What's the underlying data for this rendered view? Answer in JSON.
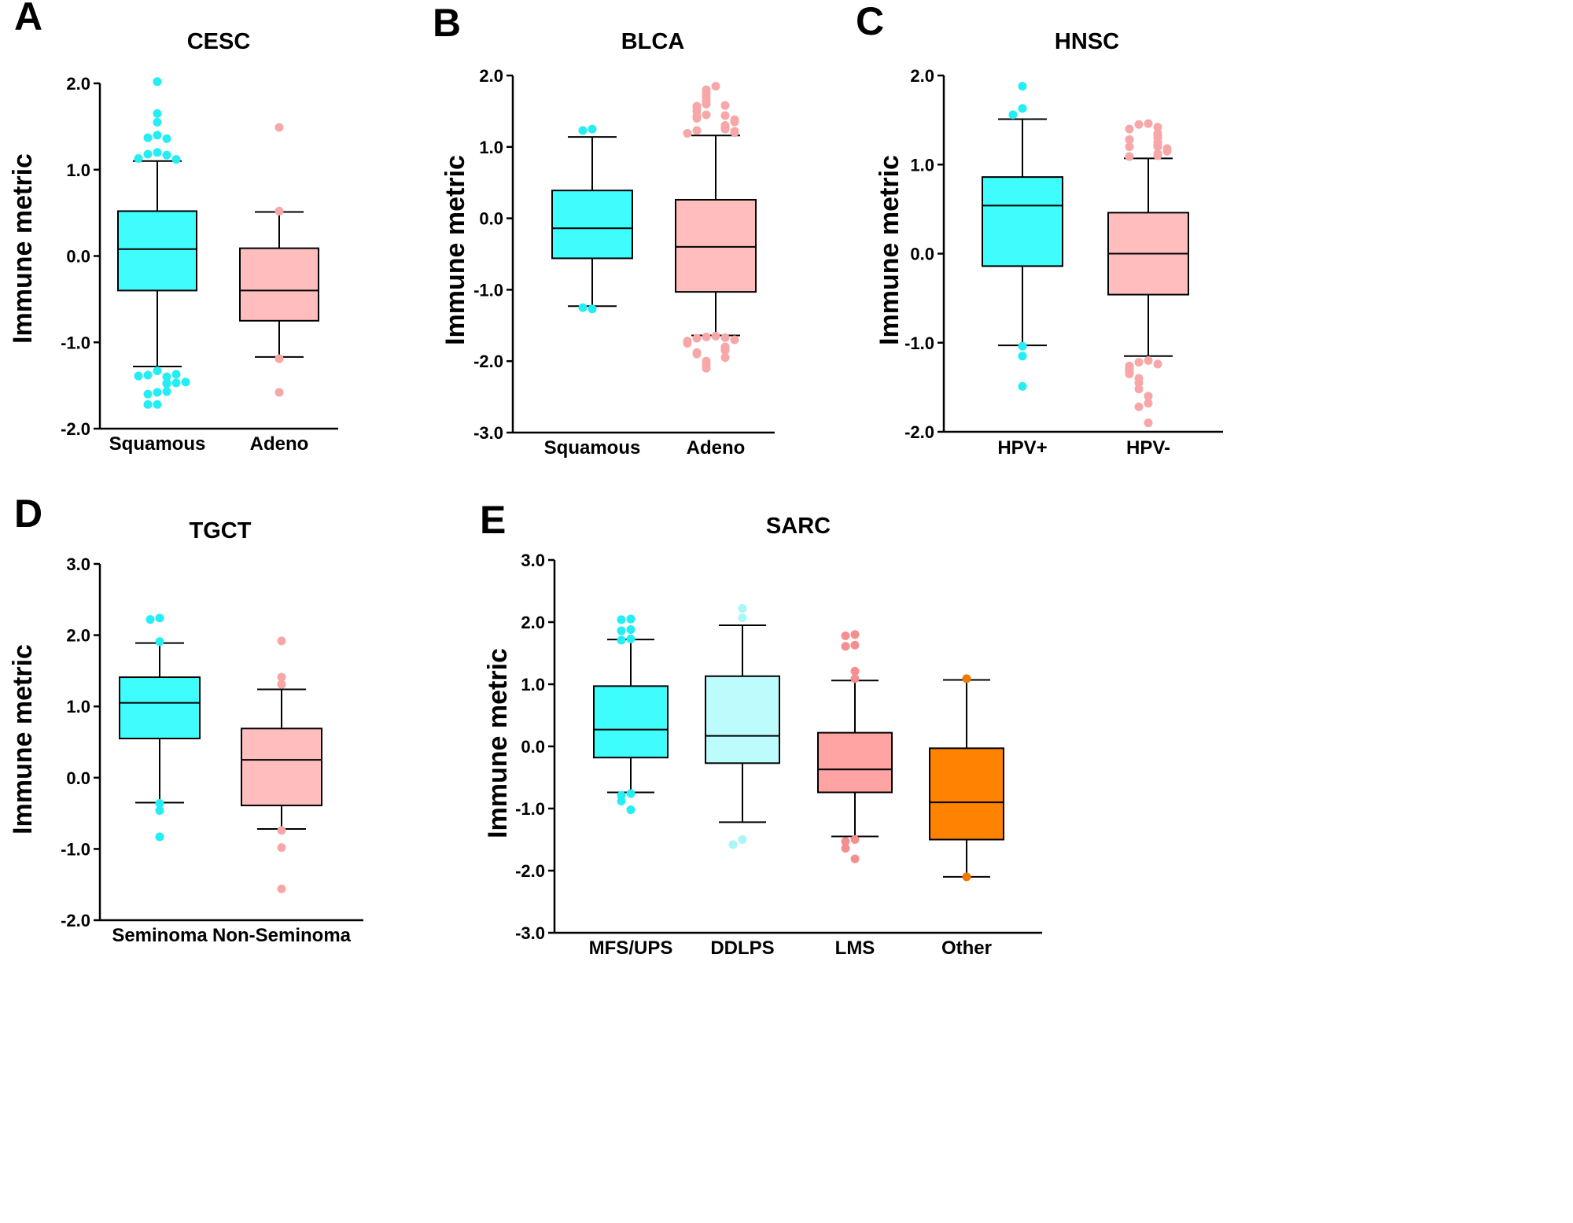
{
  "chart_data": [
    {
      "panel": "A",
      "type": "box",
      "title": "CESC",
      "ylabel": "Immune metric",
      "ylim": [
        -2.0,
        2.0
      ],
      "yticks": [
        "2.0",
        "1.0",
        "0.0",
        "-1.0",
        "-2.0"
      ],
      "categories": [
        "Squamous",
        "Adeno"
      ],
      "colors": [
        "#3ffdfd",
        "#ffbdbd"
      ],
      "outlier_colors": [
        "#22eef4",
        "#f7a7a7"
      ],
      "boxes": [
        {
          "q1": -0.4,
          "median": 0.08,
          "q3": 0.52,
          "whisker_low": -1.28,
          "whisker_high": 1.1,
          "outliers": [
            2.02,
            1.65,
            1.55,
            1.4,
            1.37,
            1.36,
            1.2,
            1.18,
            1.17,
            1.13,
            1.12,
            -1.33,
            -1.38,
            -1.4,
            -1.39,
            -1.37,
            -1.47,
            -1.48,
            -1.47,
            -1.46,
            -1.58,
            -1.6,
            -1.57,
            -1.72,
            -1.72
          ]
        },
        {
          "q1": -0.75,
          "median": -0.4,
          "q3": 0.09,
          "whisker_low": -1.17,
          "whisker_high": 0.51,
          "outliers": [
            1.49,
            0.52,
            -1.19,
            -1.58
          ]
        }
      ]
    },
    {
      "panel": "B",
      "type": "box",
      "title": "BLCA",
      "ylabel": "Immune metric",
      "ylim": [
        -3.0,
        2.0
      ],
      "yticks": [
        "2.0",
        "1.0",
        "0.0",
        "-1.0",
        "-2.0",
        "-3.0"
      ],
      "categories": [
        "Squamous",
        "Adeno"
      ],
      "colors": [
        "#3ffdfd",
        "#ffbdbd"
      ],
      "outlier_colors": [
        "#22eef4",
        "#f7a7a7"
      ],
      "boxes": [
        {
          "q1": -0.56,
          "median": -0.14,
          "q3": 0.39,
          "whisker_low": -1.23,
          "whisker_high": 1.14,
          "outliers": [
            1.25,
            1.23,
            -1.27,
            -1.25
          ]
        },
        {
          "q1": -1.03,
          "median": -0.4,
          "q3": 0.26,
          "whisker_low": -1.64,
          "whisker_high": 1.16,
          "outliers": [
            1.85,
            1.8,
            1.75,
            1.7,
            1.65,
            1.6,
            1.58,
            1.57,
            1.55,
            1.5,
            1.45,
            1.44,
            1.43,
            1.4,
            1.38,
            1.35,
            1.3,
            1.28,
            1.25,
            1.23,
            1.22,
            1.2,
            1.19,
            -1.65,
            -1.66,
            -1.67,
            -1.68,
            -1.7,
            -1.72,
            -1.75,
            -1.8,
            -1.82,
            -1.85,
            -1.88,
            -1.9,
            -1.95,
            -2.0,
            -2.05,
            -2.1
          ]
        }
      ]
    },
    {
      "panel": "C",
      "type": "box",
      "title": "HNSC",
      "ylabel": "Immune metric",
      "ylim": [
        -2.0,
        2.0
      ],
      "yticks": [
        "2.0",
        "1.0",
        "0.0",
        "-1.0",
        "-2.0"
      ],
      "categories": [
        "HPV+",
        "HPV-"
      ],
      "colors": [
        "#3ffdfd",
        "#ffbdbd"
      ],
      "outlier_colors": [
        "#22eef4",
        "#f7a7a7"
      ],
      "boxes": [
        {
          "q1": -0.14,
          "median": 0.54,
          "q3": 0.86,
          "whisker_low": -1.03,
          "whisker_high": 1.51,
          "outliers": [
            1.88,
            1.63,
            1.56,
            -1.04,
            -1.15,
            -1.49
          ]
        },
        {
          "q1": -0.46,
          "median": 0.0,
          "q3": 0.46,
          "whisker_low": -1.15,
          "whisker_high": 1.07,
          "outliers": [
            1.46,
            1.45,
            1.42,
            1.4,
            1.35,
            1.33,
            1.3,
            1.28,
            1.25,
            1.22,
            1.2,
            1.2,
            1.18,
            1.15,
            1.12,
            1.1,
            1.09,
            -1.2,
            -1.22,
            -1.24,
            -1.26,
            -1.28,
            -1.3,
            -1.32,
            -1.35,
            -1.4,
            -1.45,
            -1.52,
            -1.6,
            -1.68,
            -1.72,
            -1.9
          ]
        }
      ]
    },
    {
      "panel": "D",
      "type": "box",
      "title": "TGCT",
      "ylabel": "Immune metric",
      "ylim": [
        -2.0,
        3.0
      ],
      "yticks": [
        "3.0",
        "2.0",
        "1.0",
        "0.0",
        "-1.0",
        "-2.0"
      ],
      "categories": [
        "Seminoma",
        "Non-Seminoma"
      ],
      "colors": [
        "#3ffdfd",
        "#ffbdbd"
      ],
      "outlier_colors": [
        "#22eef4",
        "#f7a7a7"
      ],
      "boxes": [
        {
          "q1": 0.55,
          "median": 1.05,
          "q3": 1.41,
          "whisker_low": -0.35,
          "whisker_high": 1.89,
          "outliers": [
            2.24,
            2.22,
            1.91,
            -0.36,
            -0.46,
            -0.83
          ]
        },
        {
          "q1": -0.39,
          "median": 0.25,
          "q3": 0.69,
          "whisker_low": -0.72,
          "whisker_high": 1.24,
          "outliers": [
            1.92,
            1.41,
            1.31,
            -0.74,
            -0.98,
            -1.56
          ]
        }
      ]
    },
    {
      "panel": "E",
      "type": "box",
      "title": "SARC",
      "ylabel": "Immune metric",
      "ylim": [
        -3.0,
        3.0
      ],
      "yticks": [
        "3.0",
        "2.0",
        "1.0",
        "0.0",
        "-1.0",
        "-2.0",
        "-3.0"
      ],
      "categories": [
        "MFS/UPS",
        "DDLPS",
        "LMS",
        "Other"
      ],
      "colors": [
        "#3ffdfd",
        "#bcfcfc",
        "#ffa3a3",
        "#ff8200"
      ],
      "outlier_colors": [
        "#22eef4",
        "#aaf6f6",
        "#f58f8f",
        "#f07800"
      ],
      "boxes": [
        {
          "q1": -0.18,
          "median": 0.27,
          "q3": 0.97,
          "whisker_low": -0.74,
          "whisker_high": 1.72,
          "outliers": [
            2.05,
            2.04,
            1.88,
            1.86,
            1.73,
            1.71,
            -0.76,
            -0.79,
            -0.88,
            -1.02
          ]
        },
        {
          "q1": -0.27,
          "median": 0.17,
          "q3": 1.13,
          "whisker_low": -1.22,
          "whisker_high": 1.95,
          "outliers": [
            2.22,
            2.07,
            -1.5,
            -1.58
          ]
        },
        {
          "q1": -0.74,
          "median": -0.37,
          "q3": 0.22,
          "whisker_low": -1.45,
          "whisker_high": 1.06,
          "outliers": [
            1.8,
            1.78,
            1.63,
            1.61,
            1.21,
            1.09,
            -1.5,
            -1.53,
            -1.64,
            -1.81
          ]
        },
        {
          "q1": -1.5,
          "median": -0.9,
          "q3": -0.03,
          "whisker_low": -2.1,
          "whisker_high": 1.07,
          "outliers": [
            1.09,
            -2.1
          ]
        }
      ]
    }
  ]
}
